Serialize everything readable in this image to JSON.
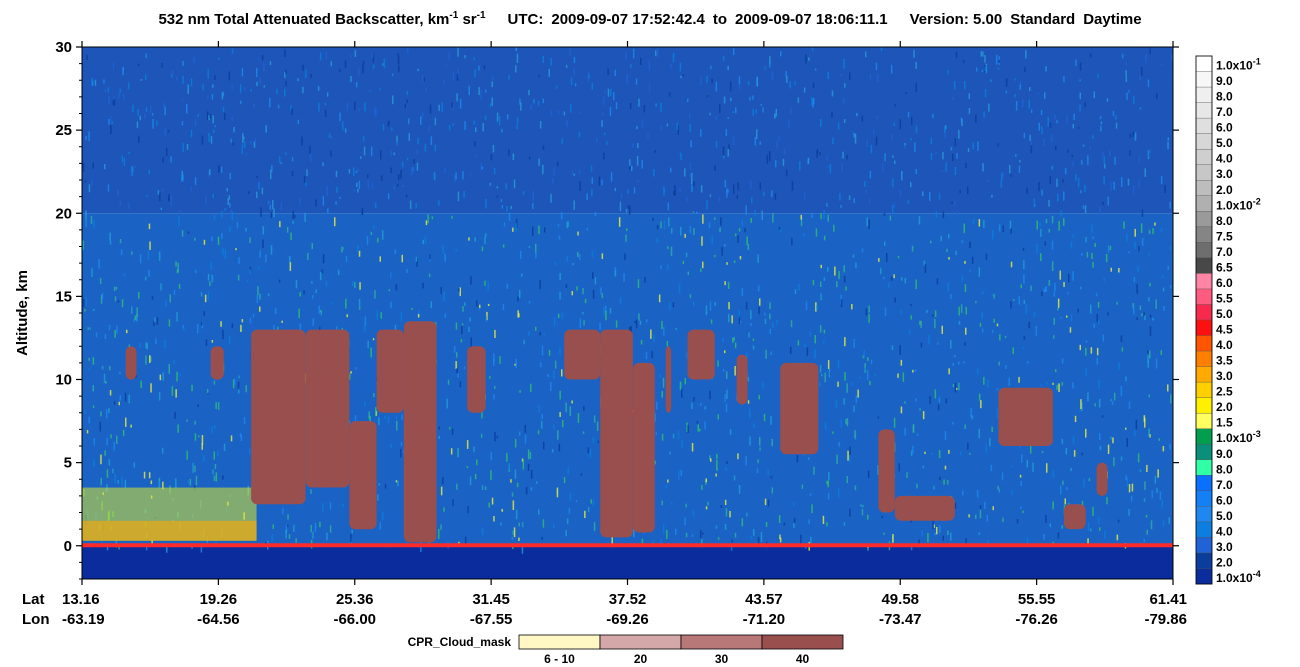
{
  "title": {
    "text": "532 nm Total Attenuated Backscatter, km",
    "sup1": "-1",
    "mid": " sr",
    "sup2": "-1",
    "utc_label": "UTC:",
    "start_time": "2009-09-07 17:52:42.4",
    "to_label": "to",
    "end_time": "2009-09-07 18:06:11.1",
    "version": "Version: 5.00",
    "standard": "Standard",
    "daytime": "Daytime"
  },
  "chart_data": {
    "type": "heatmap",
    "ylabel": "Altitude, km",
    "ylim": [
      -2,
      30
    ],
    "y_ticks": [
      0,
      5,
      10,
      15,
      20,
      25,
      30
    ],
    "x_row_labels": [
      "Lat",
      "Lon"
    ],
    "x_ticks": [
      {
        "lat": "13.16",
        "lon": "-63.19"
      },
      {
        "lat": "19.26",
        "lon": "-64.56"
      },
      {
        "lat": "25.36",
        "lon": "-66.00"
      },
      {
        "lat": "31.45",
        "lon": "-67.55"
      },
      {
        "lat": "37.52",
        "lon": "-69.26"
      },
      {
        "lat": "43.57",
        "lon": "-71.20"
      },
      {
        "lat": "49.58",
        "lon": "-73.47"
      },
      {
        "lat": "55.55",
        "lon": "-76.26"
      },
      {
        "lat": "61.41",
        "lon": "-79.86"
      }
    ],
    "colorbar": [
      {
        "label": "1.0x10-1",
        "color": "#ffffff"
      },
      {
        "label": "9.0",
        "color": "#f7f7f7"
      },
      {
        "label": "8.0",
        "color": "#efefef"
      },
      {
        "label": "7.0",
        "color": "#e7e7e7"
      },
      {
        "label": "6.0",
        "color": "#dfdfdf"
      },
      {
        "label": "5.0",
        "color": "#d7d7d7"
      },
      {
        "label": "4.0",
        "color": "#cfcfcf"
      },
      {
        "label": "3.0",
        "color": "#c7c7c7"
      },
      {
        "label": "2.0",
        "color": "#bdbdbd"
      },
      {
        "label": "1.0x10-2",
        "color": "#b0b0b0"
      },
      {
        "label": "8.0",
        "color": "#9a9a9a"
      },
      {
        "label": "7.5",
        "color": "#858585"
      },
      {
        "label": "7.0",
        "color": "#6e6e6e"
      },
      {
        "label": "6.5",
        "color": "#484848"
      },
      {
        "label": "6.0",
        "color": "#ff85a6"
      },
      {
        "label": "5.5",
        "color": "#ff5a80"
      },
      {
        "label": "5.0",
        "color": "#f7294d"
      },
      {
        "label": "4.5",
        "color": "#ff1010"
      },
      {
        "label": "4.0",
        "color": "#ff5500"
      },
      {
        "label": "3.5",
        "color": "#ff8000"
      },
      {
        "label": "3.0",
        "color": "#ffaa00"
      },
      {
        "label": "2.5",
        "color": "#ffd000"
      },
      {
        "label": "2.0",
        "color": "#fff000"
      },
      {
        "label": "1.5",
        "color": "#ffff60"
      },
      {
        "label": "1.0x10-3",
        "color": "#009e4e"
      },
      {
        "label": "9.0",
        "color": "#0a8f7a"
      },
      {
        "label": "8.0",
        "color": "#30ffa8"
      },
      {
        "label": "7.0",
        "color": "#0a70ff"
      },
      {
        "label": "6.0",
        "color": "#1480f5"
      },
      {
        "label": "5.0",
        "color": "#1e88f0"
      },
      {
        "label": "4.0",
        "color": "#0b7ee0"
      },
      {
        "label": "3.0",
        "color": "#1f63d6"
      },
      {
        "label": "2.0",
        "color": "#0a3d9c"
      },
      {
        "label": "1.0x10-4",
        "color": "#0a2c9c"
      }
    ],
    "cloud_mask_legend": {
      "label": "CPR_Cloud_mask",
      "entries": [
        {
          "label": "6 - 10",
          "color": "#fff8c4"
        },
        {
          "label": "20",
          "color": "#d4a8a8"
        },
        {
          "label": "30",
          "color": "#b87878"
        },
        {
          "label": "40",
          "color": "#9a4f4f"
        }
      ]
    },
    "cloud_mask_regions": [
      {
        "x0": 0.155,
        "x1": 0.205,
        "y0": 2.5,
        "y1": 13.0
      },
      {
        "x0": 0.205,
        "x1": 0.245,
        "y0": 3.5,
        "y1": 13.0
      },
      {
        "x0": 0.245,
        "x1": 0.27,
        "y0": 1.0,
        "y1": 7.5
      },
      {
        "x0": 0.27,
        "x1": 0.295,
        "y0": 8.0,
        "y1": 13.0
      },
      {
        "x0": 0.295,
        "x1": 0.325,
        "y0": 0.2,
        "y1": 13.5
      },
      {
        "x0": 0.353,
        "x1": 0.37,
        "y0": 8.0,
        "y1": 12.0
      },
      {
        "x0": 0.442,
        "x1": 0.475,
        "y0": 10.0,
        "y1": 13.0
      },
      {
        "x0": 0.475,
        "x1": 0.505,
        "y0": 0.5,
        "y1": 13.0
      },
      {
        "x0": 0.505,
        "x1": 0.525,
        "y0": 0.8,
        "y1": 11.0
      },
      {
        "x0": 0.535,
        "x1": 0.54,
        "y0": 8.0,
        "y1": 12.0
      },
      {
        "x0": 0.555,
        "x1": 0.58,
        "y0": 10.0,
        "y1": 13.0
      },
      {
        "x0": 0.6,
        "x1": 0.61,
        "y0": 8.5,
        "y1": 11.5
      },
      {
        "x0": 0.64,
        "x1": 0.675,
        "y0": 5.5,
        "y1": 11.0
      },
      {
        "x0": 0.84,
        "x1": 0.89,
        "y0": 6.0,
        "y1": 9.5
      },
      {
        "x0": 0.73,
        "x1": 0.745,
        "y0": 2.0,
        "y1": 7.0
      },
      {
        "x0": 0.745,
        "x1": 0.8,
        "y0": 1.5,
        "y1": 3.0
      },
      {
        "x0": 0.9,
        "x1": 0.92,
        "y0": 1.0,
        "y1": 2.5
      },
      {
        "x0": 0.93,
        "x1": 0.94,
        "y0": 3.0,
        "y1": 5.0
      },
      {
        "x0": 0.118,
        "x1": 0.13,
        "y0": 10.0,
        "y1": 12.0
      },
      {
        "x0": 0.04,
        "x1": 0.05,
        "y0": 10.0,
        "y1": 12.0
      }
    ]
  }
}
